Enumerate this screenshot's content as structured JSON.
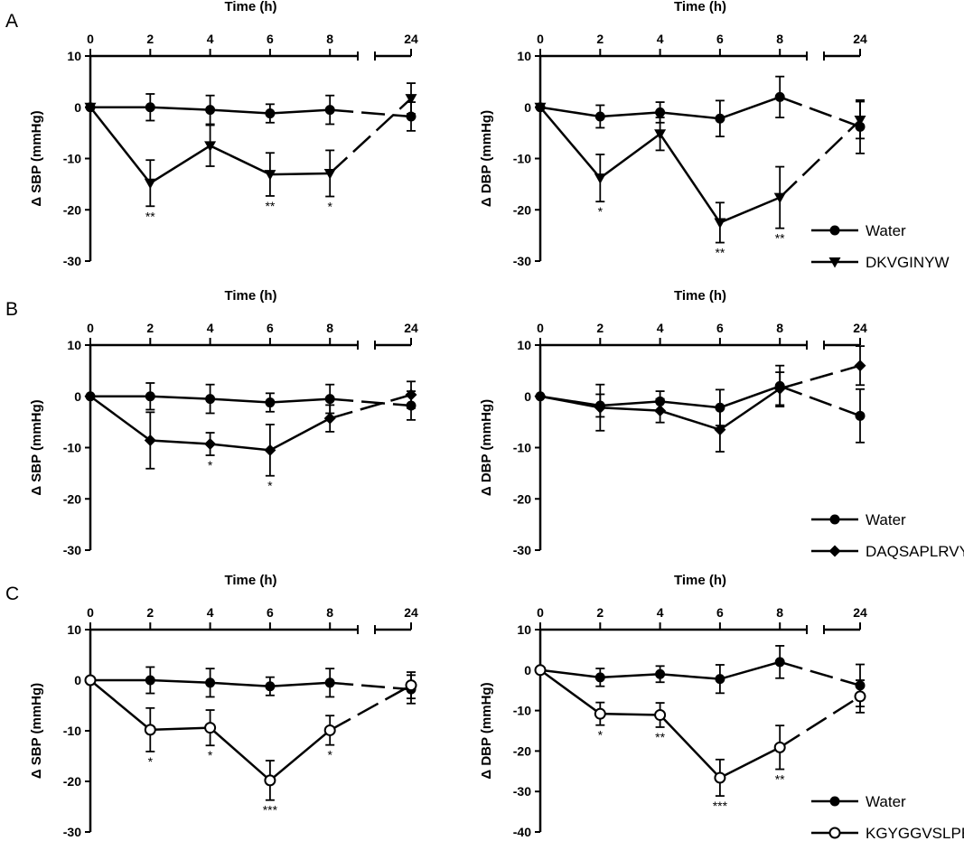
{
  "row_labels": [
    "A",
    "B",
    "C"
  ],
  "chart_data": [
    {
      "type": "line",
      "panel": "A",
      "variable": "SBP",
      "xlabel": "Time (h)",
      "ylabel": "Δ SBP (mmHg)",
      "x_ticks": [
        0,
        2,
        4,
        6,
        8,
        24
      ],
      "ylim": [
        -30,
        10
      ],
      "y_ticks": [
        10,
        0,
        -10,
        -20,
        -30
      ],
      "legend": null,
      "series": [
        {
          "name": "Water",
          "marker": "filled-circle",
          "x": [
            0,
            2,
            4,
            6,
            8,
            24
          ],
          "y": [
            0,
            0,
            -0.5,
            -1.2,
            -0.5,
            -1.8
          ],
          "err": [
            0,
            2.6,
            2.8,
            1.8,
            2.8,
            2.8
          ]
        },
        {
          "name": "DKVGINYW",
          "marker": "filled-triangle-down",
          "x": [
            0,
            2,
            4,
            6,
            8,
            24
          ],
          "y": [
            0,
            -14.8,
            -7.5,
            -13.1,
            -12.9,
            1.7
          ],
          "err": [
            0,
            4.5,
            4.0,
            4.2,
            4.5,
            3.0
          ]
        }
      ],
      "annotations": [
        {
          "x": 2,
          "text": "**",
          "series": "DKVGINYW"
        },
        {
          "x": 6,
          "text": "**",
          "series": "DKVGINYW"
        },
        {
          "x": 8,
          "text": "*",
          "series": "DKVGINYW"
        }
      ]
    },
    {
      "type": "line",
      "panel": "A",
      "variable": "DBP",
      "xlabel": "Time (h)",
      "ylabel": "Δ DBP (mmHg)",
      "x_ticks": [
        0,
        2,
        4,
        6,
        8,
        24
      ],
      "ylim": [
        -30,
        10
      ],
      "y_ticks": [
        10,
        0,
        -10,
        -20,
        -30
      ],
      "legend": {
        "items": [
          "Water",
          "DKVGINYW"
        ]
      },
      "series": [
        {
          "name": "Water",
          "marker": "filled-circle",
          "x": [
            0,
            2,
            4,
            6,
            8,
            24
          ],
          "y": [
            0,
            -1.8,
            -1.0,
            -2.2,
            2.0,
            -3.8
          ],
          "err": [
            0,
            2.2,
            2.0,
            3.5,
            4.0,
            5.2
          ]
        },
        {
          "name": "DKVGINYW",
          "marker": "filled-triangle-down",
          "x": [
            0,
            2,
            4,
            6,
            8,
            24
          ],
          "y": [
            0,
            -13.8,
            -5.2,
            -22.5,
            -17.6,
            -2.5
          ],
          "err": [
            0,
            4.6,
            3.2,
            3.9,
            6.0,
            3.6
          ]
        }
      ],
      "annotations": [
        {
          "x": 2,
          "text": "*",
          "series": "DKVGINYW"
        },
        {
          "x": 6,
          "text": "**",
          "series": "DKVGINYW"
        },
        {
          "x": 8,
          "text": "**",
          "series": "DKVGINYW"
        }
      ]
    },
    {
      "type": "line",
      "panel": "B",
      "variable": "SBP",
      "xlabel": "Time (h)",
      "ylabel": "Δ SBP (mmHg)",
      "x_ticks": [
        0,
        2,
        4,
        6,
        8,
        24
      ],
      "ylim": [
        -30,
        10
      ],
      "y_ticks": [
        10,
        0,
        -10,
        -20,
        -30
      ],
      "legend": null,
      "series": [
        {
          "name": "Water",
          "marker": "filled-circle",
          "x": [
            0,
            2,
            4,
            6,
            8,
            24
          ],
          "y": [
            0,
            0,
            -0.5,
            -1.2,
            -0.5,
            -1.8
          ],
          "err": [
            0,
            2.6,
            2.8,
            1.8,
            2.8,
            2.8
          ]
        },
        {
          "name": "DAQSAPLRVY",
          "marker": "filled-diamond",
          "x": [
            0,
            2,
            4,
            6,
            8,
            24
          ],
          "y": [
            0,
            -8.6,
            -9.3,
            -10.5,
            -4.3,
            0.3
          ],
          "err": [
            0,
            5.5,
            2.2,
            5.0,
            2.6,
            2.6
          ]
        }
      ],
      "annotations": [
        {
          "x": 4,
          "text": "*",
          "series": "DAQSAPLRVY"
        },
        {
          "x": 6,
          "text": "*",
          "series": "DAQSAPLRVY"
        }
      ]
    },
    {
      "type": "line",
      "panel": "B",
      "variable": "DBP",
      "xlabel": "Time (h)",
      "ylabel": "Δ DBP (mmHg)",
      "x_ticks": [
        0,
        2,
        4,
        6,
        8,
        24
      ],
      "ylim": [
        -30,
        10
      ],
      "y_ticks": [
        10,
        0,
        -10,
        -20,
        -30
      ],
      "legend": {
        "items": [
          "Water",
          "DAQSAPLRVY"
        ]
      },
      "series": [
        {
          "name": "Water",
          "marker": "filled-circle",
          "x": [
            0,
            2,
            4,
            6,
            8,
            24
          ],
          "y": [
            0,
            -1.8,
            -1.0,
            -2.2,
            2.0,
            -3.8
          ],
          "err": [
            0,
            2.2,
            2.0,
            3.5,
            4.0,
            5.2
          ]
        },
        {
          "name": "DAQSAPLRVY",
          "marker": "filled-diamond",
          "x": [
            0,
            2,
            4,
            6,
            8,
            24
          ],
          "y": [
            0,
            -2.2,
            -2.8,
            -6.5,
            1.5,
            6.0
          ],
          "err": [
            0,
            4.5,
            2.3,
            4.3,
            3.2,
            3.8
          ]
        }
      ],
      "annotations": []
    },
    {
      "type": "line",
      "panel": "C",
      "variable": "SBP",
      "xlabel": "Time (h)",
      "ylabel": "Δ SBP (mmHg)",
      "x_ticks": [
        0,
        2,
        4,
        6,
        8,
        24
      ],
      "ylim": [
        -30,
        10
      ],
      "y_ticks": [
        10,
        0,
        -10,
        -20,
        -30
      ],
      "legend": null,
      "series": [
        {
          "name": "Water",
          "marker": "filled-circle",
          "x": [
            0,
            2,
            4,
            6,
            8,
            24
          ],
          "y": [
            0,
            0,
            -0.5,
            -1.2,
            -0.5,
            -1.8
          ],
          "err": [
            0,
            2.6,
            2.8,
            1.8,
            2.8,
            2.8
          ]
        },
        {
          "name": "KGYGGVSLPEW",
          "marker": "open-circle",
          "x": [
            0,
            2,
            4,
            6,
            8,
            24
          ],
          "y": [
            0,
            -9.8,
            -9.4,
            -19.8,
            -9.9,
            -1.0
          ],
          "err": [
            0,
            4.3,
            3.5,
            3.9,
            2.9,
            2.6
          ]
        }
      ],
      "annotations": [
        {
          "x": 2,
          "text": "*",
          "series": "KGYGGVSLPEW"
        },
        {
          "x": 4,
          "text": "*",
          "series": "KGYGGVSLPEW"
        },
        {
          "x": 6,
          "text": "***",
          "series": "KGYGGVSLPEW"
        },
        {
          "x": 8,
          "text": "*",
          "series": "KGYGGVSLPEW"
        }
      ]
    },
    {
      "type": "line",
      "panel": "C",
      "variable": "DBP",
      "xlabel": "Time (h)",
      "ylabel": "Δ DBP (mmHg)",
      "x_ticks": [
        0,
        2,
        4,
        6,
        8,
        24
      ],
      "ylim": [
        -40,
        10
      ],
      "y_ticks": [
        10,
        0,
        -10,
        -20,
        -30,
        -40
      ],
      "legend": {
        "items": [
          "Water",
          "KGYGGVSLPEW"
        ]
      },
      "series": [
        {
          "name": "Water",
          "marker": "filled-circle",
          "x": [
            0,
            2,
            4,
            6,
            8,
            24
          ],
          "y": [
            0,
            -1.8,
            -1.0,
            -2.2,
            2.0,
            -3.8
          ],
          "err": [
            0,
            2.2,
            2.0,
            3.5,
            4.0,
            5.2
          ]
        },
        {
          "name": "KGYGGVSLPEW",
          "marker": "open-circle",
          "x": [
            0,
            2,
            4,
            6,
            8,
            24
          ],
          "y": [
            0,
            -10.8,
            -11.1,
            -26.6,
            -19.1,
            -6.5
          ],
          "err": [
            0,
            2.8,
            3.0,
            4.5,
            5.4,
            4.0
          ]
        }
      ],
      "annotations": [
        {
          "x": 2,
          "text": "*",
          "series": "KGYGGVSLPEW"
        },
        {
          "x": 4,
          "text": "**",
          "series": "KGYGGVSLPEW"
        },
        {
          "x": 6,
          "text": "***",
          "series": "KGYGGVSLPEW"
        },
        {
          "x": 8,
          "text": "**",
          "series": "KGYGGVSLPEW"
        }
      ]
    }
  ]
}
